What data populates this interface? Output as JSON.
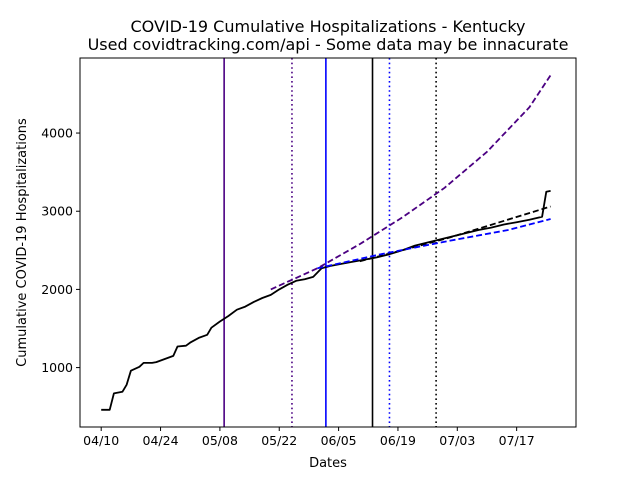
{
  "chart_data": {
    "type": "line",
    "title_lines": [
      "COVID-19 Cumulative Hospitalizations - Kentucky",
      "Used covidtracking.com/api - Some data may be innacurate"
    ],
    "xlabel": "Dates",
    "ylabel": "Cumulative COVID-19 Hospitalizations",
    "x_tick_labels": [
      "04/10",
      "04/24",
      "05/08",
      "05/22",
      "06/05",
      "06/19",
      "07/03",
      "07/17"
    ],
    "x_tick_dates": [
      "2020-04-10",
      "2020-04-24",
      "2020-05-08",
      "2020-05-22",
      "2020-06-05",
      "2020-06-19",
      "2020-07-03",
      "2020-07-17"
    ],
    "xlim": [
      "2020-04-05",
      "2020-07-31"
    ],
    "y_ticks": [
      1000,
      2000,
      3000,
      4000
    ],
    "ylim": [
      240,
      4960
    ],
    "grid": false,
    "legend": "none",
    "series": [
      {
        "style": "solid",
        "color": "#000000",
        "points": [
          [
            "2020-04-10",
            460
          ],
          [
            "2020-04-12",
            460
          ],
          [
            "2020-04-13",
            670
          ],
          [
            "2020-04-15",
            690
          ],
          [
            "2020-04-16",
            780
          ],
          [
            "2020-04-17",
            960
          ],
          [
            "2020-04-19",
            1010
          ],
          [
            "2020-04-20",
            1060
          ],
          [
            "2020-04-22",
            1060
          ],
          [
            "2020-04-23",
            1070
          ],
          [
            "2020-04-25",
            1110
          ],
          [
            "2020-04-27",
            1150
          ],
          [
            "2020-04-28",
            1270
          ],
          [
            "2020-04-30",
            1280
          ],
          [
            "2020-05-01",
            1320
          ],
          [
            "2020-05-03",
            1380
          ],
          [
            "2020-05-05",
            1420
          ],
          [
            "2020-05-06",
            1510
          ],
          [
            "2020-05-08",
            1590
          ],
          [
            "2020-05-10",
            1660
          ],
          [
            "2020-05-12",
            1740
          ],
          [
            "2020-05-14",
            1780
          ],
          [
            "2020-05-16",
            1840
          ],
          [
            "2020-05-18",
            1890
          ],
          [
            "2020-05-20",
            1930
          ],
          [
            "2020-05-22",
            2000
          ],
          [
            "2020-05-24",
            2060
          ],
          [
            "2020-05-26",
            2110
          ],
          [
            "2020-05-28",
            2130
          ],
          [
            "2020-05-30",
            2160
          ],
          [
            "2020-06-01",
            2270
          ],
          [
            "2020-06-03",
            2300
          ],
          [
            "2020-06-05",
            2320
          ],
          [
            "2020-06-08",
            2350
          ],
          [
            "2020-06-11",
            2380
          ],
          [
            "2020-06-14",
            2410
          ],
          [
            "2020-06-17",
            2450
          ],
          [
            "2020-06-20",
            2500
          ],
          [
            "2020-06-23",
            2560
          ],
          [
            "2020-06-26",
            2600
          ],
          [
            "2020-06-29",
            2640
          ],
          [
            "2020-07-02",
            2680
          ],
          [
            "2020-07-05",
            2720
          ],
          [
            "2020-07-08",
            2760
          ],
          [
            "2020-07-11",
            2790
          ],
          [
            "2020-07-14",
            2830
          ],
          [
            "2020-07-17",
            2860
          ],
          [
            "2020-07-20",
            2890
          ],
          [
            "2020-07-23",
            2930
          ],
          [
            "2020-07-24",
            3250
          ],
          [
            "2020-07-25",
            3260
          ]
        ]
      },
      {
        "style": "dashed",
        "color": "#000000",
        "points": [
          [
            "2020-06-10",
            2360
          ],
          [
            "2020-06-20",
            2500
          ],
          [
            "2020-07-01",
            2660
          ],
          [
            "2020-07-10",
            2810
          ],
          [
            "2020-07-25",
            3060
          ]
        ]
      },
      {
        "style": "dashed",
        "color": "#0000ff",
        "points": [
          [
            "2020-05-31",
            2270
          ],
          [
            "2020-06-15",
            2450
          ],
          [
            "2020-07-01",
            2620
          ],
          [
            "2020-07-15",
            2760
          ],
          [
            "2020-07-25",
            2900
          ]
        ]
      },
      {
        "style": "dashed",
        "color": "#4b0082",
        "points": [
          [
            "2020-05-20",
            2000
          ],
          [
            "2020-05-31",
            2270
          ],
          [
            "2020-06-10",
            2580
          ],
          [
            "2020-06-20",
            2920
          ],
          [
            "2020-06-30",
            3300
          ],
          [
            "2020-07-10",
            3760
          ],
          [
            "2020-07-20",
            4330
          ],
          [
            "2020-07-25",
            4740
          ]
        ]
      }
    ],
    "vertical_lines": [
      {
        "date": "2020-05-09",
        "style": "solid",
        "color": "#4b0082"
      },
      {
        "date": "2020-05-25",
        "style": "dotted",
        "color": "#4b0082"
      },
      {
        "date": "2020-06-02",
        "style": "solid",
        "color": "#0000ff"
      },
      {
        "date": "2020-06-13",
        "style": "solid",
        "color": "#000000"
      },
      {
        "date": "2020-06-17",
        "style": "dotted",
        "color": "#0000ff"
      },
      {
        "date": "2020-06-28",
        "style": "dotted",
        "color": "#000000"
      }
    ]
  }
}
